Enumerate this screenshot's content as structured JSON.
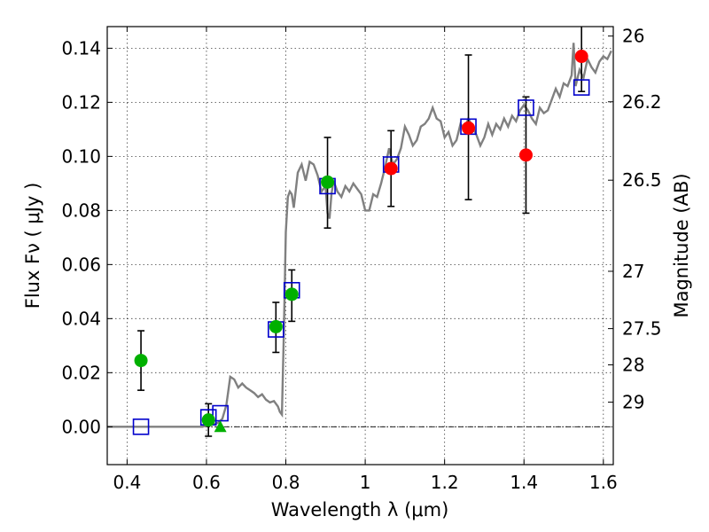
{
  "chart_data": {
    "type": "scatter",
    "xlabel": "Wavelength  λ (μm)",
    "ylabel": "Flux  Fν  ( μJy )",
    "y2label": "Magnitude (AB)",
    "xlim": [
      0.35,
      1.625
    ],
    "ylim": [
      -0.014,
      0.148
    ],
    "x_ticks": [
      0.4,
      0.6,
      0.8,
      1.0,
      1.2,
      1.4,
      1.6
    ],
    "x_tick_labels": [
      "0.4",
      "0.6",
      "0.8",
      "1",
      "1.2",
      "1.4",
      "1.6"
    ],
    "y_ticks": [
      0.0,
      0.02,
      0.04,
      0.06,
      0.08,
      0.1,
      0.12,
      0.14
    ],
    "y_tick_labels": [
      "0.00",
      "0.02",
      "0.04",
      "0.06",
      "0.08",
      "0.10",
      "0.12",
      "0.14"
    ],
    "y2_ticks": [
      {
        "label": "26",
        "flux": 0.1445
      },
      {
        "label": "26.2",
        "flux": 0.1202
      },
      {
        "label": "26.5",
        "flux": 0.0912
      },
      {
        "label": "27",
        "flux": 0.0575
      },
      {
        "label": "27.5",
        "flux": 0.0363
      },
      {
        "label": "28",
        "flux": 0.0229
      },
      {
        "label": "29",
        "flux": 0.0091
      }
    ],
    "grid": true,
    "colors": {
      "model": "#808080",
      "green_points": "#00b000",
      "red_points": "#ff0000",
      "model_squares": "#0000cc",
      "error_bars": "#000000"
    },
    "model_spectrum": {
      "x": [
        0.35,
        0.59,
        0.6,
        0.61,
        0.62,
        0.63,
        0.64,
        0.65,
        0.66,
        0.67,
        0.68,
        0.69,
        0.7,
        0.71,
        0.72,
        0.73,
        0.74,
        0.75,
        0.76,
        0.77,
        0.78,
        0.785,
        0.79,
        0.795,
        0.8,
        0.805,
        0.81,
        0.815,
        0.82,
        0.83,
        0.84,
        0.85,
        0.86,
        0.87,
        0.88,
        0.89,
        0.9,
        0.905,
        0.91,
        0.915,
        0.92,
        0.93,
        0.94,
        0.95,
        0.96,
        0.97,
        0.98,
        0.99,
        1.0,
        1.01,
        1.02,
        1.03,
        1.04,
        1.05,
        1.06,
        1.07,
        1.08,
        1.09,
        1.1,
        1.11,
        1.12,
        1.13,
        1.14,
        1.15,
        1.16,
        1.17,
        1.18,
        1.19,
        1.2,
        1.21,
        1.22,
        1.23,
        1.24,
        1.25,
        1.26,
        1.27,
        1.28,
        1.29,
        1.3,
        1.31,
        1.32,
        1.33,
        1.34,
        1.35,
        1.36,
        1.37,
        1.38,
        1.39,
        1.4,
        1.41,
        1.42,
        1.43,
        1.44,
        1.45,
        1.46,
        1.47,
        1.48,
        1.49,
        1.5,
        1.51,
        1.52,
        1.525,
        1.53,
        1.54,
        1.55,
        1.56,
        1.57,
        1.58,
        1.59,
        1.6,
        1.61,
        1.62
      ],
      "y": [
        0.0,
        0.0,
        0.0005,
        0.0008,
        0.001,
        0.0015,
        0.003,
        0.008,
        0.0185,
        0.0175,
        0.0145,
        0.016,
        0.0145,
        0.0135,
        0.0125,
        0.011,
        0.012,
        0.01,
        0.009,
        0.0095,
        0.0075,
        0.0055,
        0.0045,
        0.035,
        0.072,
        0.085,
        0.087,
        0.086,
        0.081,
        0.094,
        0.097,
        0.091,
        0.098,
        0.097,
        0.093,
        0.087,
        0.089,
        0.079,
        0.077,
        0.086,
        0.091,
        0.087,
        0.085,
        0.089,
        0.087,
        0.09,
        0.088,
        0.086,
        0.08,
        0.08,
        0.086,
        0.085,
        0.09,
        0.096,
        0.103,
        0.097,
        0.099,
        0.103,
        0.111,
        0.108,
        0.104,
        0.106,
        0.111,
        0.112,
        0.114,
        0.118,
        0.114,
        0.113,
        0.107,
        0.109,
        0.104,
        0.106,
        0.112,
        0.11,
        0.114,
        0.111,
        0.108,
        0.104,
        0.107,
        0.112,
        0.108,
        0.112,
        0.11,
        0.114,
        0.111,
        0.115,
        0.113,
        0.117,
        0.119,
        0.117,
        0.114,
        0.112,
        0.118,
        0.116,
        0.117,
        0.121,
        0.125,
        0.122,
        0.127,
        0.126,
        0.13,
        0.142,
        0.126,
        0.132,
        0.129,
        0.136,
        0.133,
        0.131,
        0.135,
        0.137,
        0.136,
        0.139
      ]
    },
    "green_points": [
      {
        "x": 0.435,
        "y": 0.0245,
        "err_lo": 0.0135,
        "err_hi": 0.0355
      },
      {
        "x": 0.605,
        "y": 0.0025,
        "err_lo": -0.0035,
        "err_hi": 0.0085
      },
      {
        "x": 0.775,
        "y": 0.037,
        "err_lo": 0.0275,
        "err_hi": 0.046
      },
      {
        "x": 0.815,
        "y": 0.049,
        "err_lo": 0.039,
        "err_hi": 0.058
      },
      {
        "x": 0.905,
        "y": 0.0905,
        "err_lo": 0.0735,
        "err_hi": 0.107
      }
    ],
    "green_triangle": {
      "x": 0.635,
      "y": 0.0
    },
    "red_points": [
      {
        "x": 1.065,
        "y": 0.0955,
        "err_lo": 0.0815,
        "err_hi": 0.1095
      },
      {
        "x": 1.26,
        "y": 0.1105,
        "err_lo": 0.084,
        "err_hi": 0.1375
      },
      {
        "x": 1.405,
        "y": 0.1005,
        "err_lo": 0.079,
        "err_hi": 0.122
      },
      {
        "x": 1.545,
        "y": 0.137,
        "err_lo": 0.124,
        "err_hi": 0.149
      }
    ],
    "model_squares": [
      {
        "x": 0.435,
        "y": 0.0
      },
      {
        "x": 0.605,
        "y": 0.0035
      },
      {
        "x": 0.635,
        "y": 0.005
      },
      {
        "x": 0.775,
        "y": 0.036
      },
      {
        "x": 0.815,
        "y": 0.0505
      },
      {
        "x": 0.905,
        "y": 0.089
      },
      {
        "x": 1.065,
        "y": 0.097
      },
      {
        "x": 1.26,
        "y": 0.111
      },
      {
        "x": 1.405,
        "y": 0.118
      },
      {
        "x": 1.545,
        "y": 0.1255
      }
    ]
  }
}
